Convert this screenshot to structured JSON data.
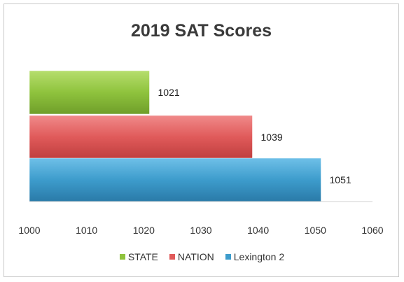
{
  "chart_data": {
    "type": "bar",
    "orientation": "horizontal",
    "title": "2019 SAT Scores",
    "categories": [
      "STATE",
      "NATION",
      "Lexington 2"
    ],
    "values": [
      1021,
      1039,
      1051
    ],
    "colors": [
      "#8fc33d",
      "#e05a5a",
      "#3d9ccc"
    ],
    "xlim": [
      1000,
      1060
    ],
    "xticks": [
      1000,
      1010,
      1020,
      1030,
      1040,
      1050,
      1060
    ],
    "legend_position": "bottom",
    "grid": false
  }
}
